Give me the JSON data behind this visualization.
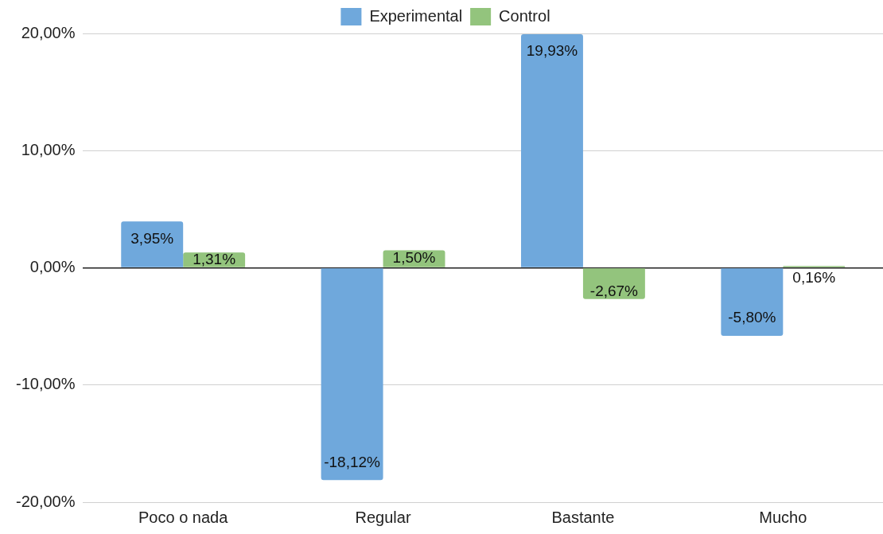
{
  "chart_data": {
    "type": "bar",
    "categories": [
      "Poco o nada",
      "Regular",
      "Bastante",
      "Mucho"
    ],
    "series": [
      {
        "name": "Experimental",
        "color": "#6fa8dc",
        "values": [
          3.95,
          -18.12,
          19.93,
          -5.8
        ],
        "value_labels": [
          "3,95%",
          "-18,12%",
          "19,93%",
          "-5,80%"
        ]
      },
      {
        "name": "Control",
        "color": "#93c47d",
        "values": [
          1.31,
          1.5,
          -2.67,
          0.16
        ],
        "value_labels": [
          "1,31%",
          "1,50%",
          "-2,67%",
          "0,16%"
        ]
      }
    ],
    "ylim": [
      -20,
      20
    ],
    "yticks": [
      {
        "value": -20,
        "label": "-20,00%"
      },
      {
        "value": -10,
        "label": "-10,00%"
      },
      {
        "value": 0,
        "label": "0,00%"
      },
      {
        "value": 10,
        "label": "10,00%"
      },
      {
        "value": 20,
        "label": "20,00%"
      }
    ],
    "grid": "y",
    "legend": "top"
  }
}
